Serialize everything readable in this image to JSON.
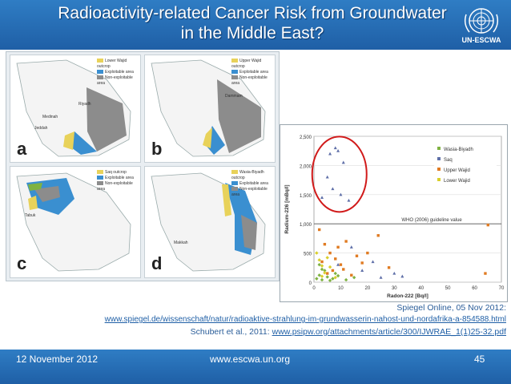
{
  "title": "Radioactivity-related Cancer Risk from Groundwater in the Middle East?",
  "logo_text": "UN-ESCWA",
  "maps": {
    "panels": [
      {
        "letter": "a",
        "legend": [
          "Lower Wajid outcrop",
          "Exploitable area",
          "Non-exploitable area"
        ]
      },
      {
        "letter": "b",
        "legend": [
          "Upper Wajid outcrop",
          "Exploitable area",
          "Non-exploitable area"
        ]
      },
      {
        "letter": "c",
        "legend": [
          "Saq outcrop",
          "Exploitable area",
          "Non-exploitable area"
        ]
      },
      {
        "letter": "d",
        "legend": [
          "Wasia-Biyadh outcrop",
          "Exploitable area",
          "Non-exploitable area"
        ]
      }
    ],
    "places": [
      "Riyadh",
      "Medinah",
      "Jeddah",
      "Makkah",
      "Dammam",
      "Tabuk"
    ]
  },
  "chart_data": {
    "type": "scatter",
    "xlabel": "Radon-222 [Bq/l]",
    "ylabel": "Radium-226 [mBq/l]",
    "xlim": [
      0,
      70
    ],
    "ylim": [
      0,
      2500
    ],
    "x_ticks": [
      "0",
      "10",
      "20",
      "30",
      "40",
      "50",
      "60",
      "70"
    ],
    "y_ticks": [
      "0",
      "500",
      "1,000",
      "1,500",
      "2,000",
      "2,500"
    ],
    "guideline": {
      "label": "WHO (2006) guideline value",
      "y": 1000
    },
    "series": [
      {
        "name": "Wasia-Biyadh",
        "color": "#7fb241",
        "points": [
          [
            1,
            60
          ],
          [
            2,
            120
          ],
          [
            3,
            40
          ],
          [
            4,
            200
          ],
          [
            5,
            90
          ],
          [
            6,
            30
          ],
          [
            8,
            150
          ],
          [
            2,
            300
          ],
          [
            3,
            220
          ],
          [
            7,
            60
          ],
          [
            9,
            110
          ],
          [
            12,
            40
          ],
          [
            15,
            80
          ]
        ]
      },
      {
        "name": "Saq",
        "color": "#5f6fa8",
        "points": [
          [
            6,
            2200
          ],
          [
            8,
            2300
          ],
          [
            9,
            2250
          ],
          [
            5,
            1800
          ],
          [
            7,
            1600
          ],
          [
            11,
            2050
          ],
          [
            3,
            1450
          ],
          [
            13,
            1400
          ],
          [
            10,
            1500
          ],
          [
            18,
            200
          ],
          [
            22,
            350
          ],
          [
            30,
            150
          ],
          [
            14,
            600
          ],
          [
            9,
            300
          ],
          [
            25,
            80
          ],
          [
            33,
            100
          ]
        ]
      },
      {
        "name": "Upper Wajid",
        "color": "#e07b22",
        "points": [
          [
            2,
            900
          ],
          [
            4,
            650
          ],
          [
            6,
            500
          ],
          [
            8,
            400
          ],
          [
            10,
            300
          ],
          [
            12,
            700
          ],
          [
            16,
            450
          ],
          [
            20,
            500
          ],
          [
            24,
            800
          ],
          [
            28,
            250
          ],
          [
            3,
            350
          ],
          [
            5,
            150
          ],
          [
            7,
            200
          ],
          [
            14,
            120
          ],
          [
            11,
            220
          ],
          [
            65,
            980
          ],
          [
            64,
            150
          ],
          [
            18,
            330
          ],
          [
            9,
            600
          ]
        ]
      },
      {
        "name": "Lower Wajid",
        "color": "#d9cf2b",
        "points": [
          [
            1,
            500
          ],
          [
            2,
            380
          ],
          [
            3,
            280
          ],
          [
            4,
            160
          ],
          [
            5,
            420
          ],
          [
            6,
            260
          ],
          [
            3,
            100
          ],
          [
            8,
            80
          ]
        ]
      }
    ]
  },
  "captions": {
    "line1": "Spiegel Online, 05 Nov 2012:",
    "line2": "www.spiegel.de/wissenschaft/natur/radioaktive-strahlung-im-grundwasserin-nahost-und-nordafrika-a-854588.html",
    "line3_prefix": "Schubert et al., 2011: ",
    "line3_url": "www.psipw.org/attachments/article/300/IJWRAE_1(1)25-32.pdf"
  },
  "footer": {
    "date": "12 November 2012",
    "website": "www.escwa.un.org",
    "page": "45"
  },
  "colors": {
    "header": "#1f5fa6",
    "accent_circle": "#d11a1a",
    "exploitable": "#3a8fd0",
    "non_exploitable": "#8c8c8c",
    "outcrop": "#e8d25a"
  }
}
